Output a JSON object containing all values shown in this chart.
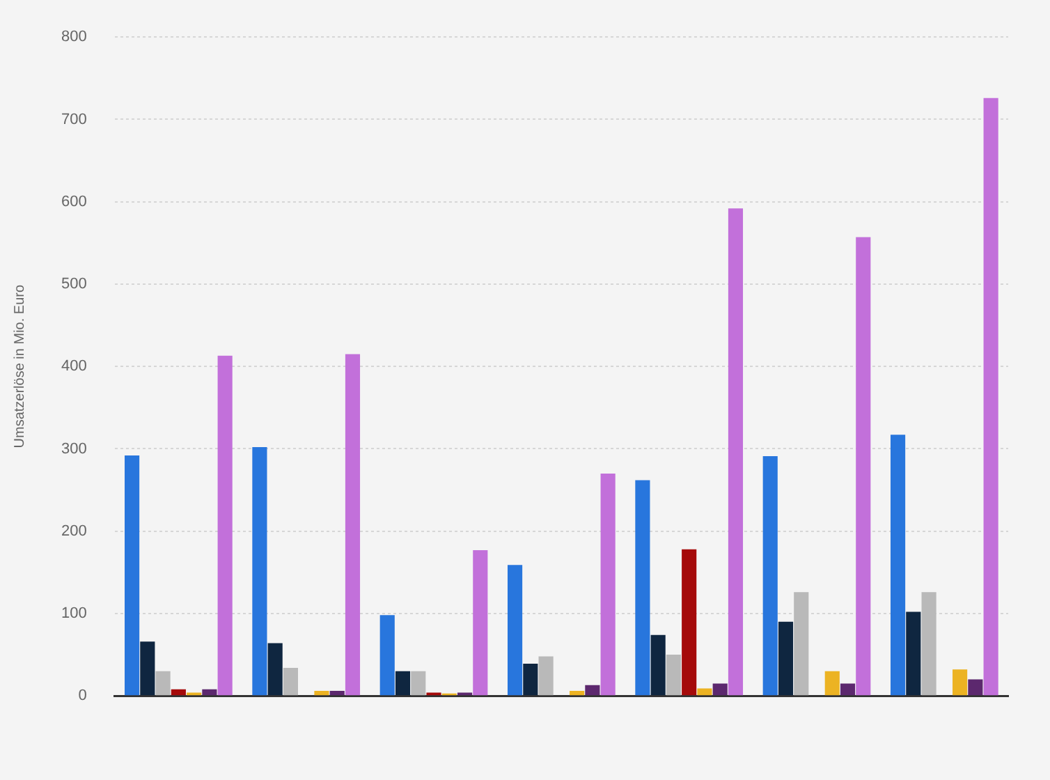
{
  "chart_data": {
    "type": "bar",
    "ylabel": "Umsatzerlöse in Mio. Euro",
    "categories": [
      null,
      null,
      null,
      null,
      null,
      null,
      null
    ],
    "series": [
      {
        "color": "#2876dd",
        "values": [
          292,
          302,
          98,
          159,
          262,
          291,
          317
        ]
      },
      {
        "color": "#0f2640",
        "values": [
          66,
          64,
          30,
          39,
          74,
          90,
          102
        ]
      },
      {
        "color": "#b9b9b9",
        "values": [
          30,
          34,
          30,
          48,
          50,
          126,
          126
        ]
      },
      {
        "color": "#a50a0a",
        "values": [
          8,
          null,
          4,
          null,
          178,
          null,
          null
        ]
      },
      {
        "color": "#ecb323",
        "values": [
          4,
          6,
          3,
          6,
          9,
          30,
          32
        ]
      },
      {
        "color": "#5c286e",
        "values": [
          8,
          6,
          4,
          13,
          15,
          15,
          20
        ]
      },
      {
        "color": "#c270da",
        "values": [
          413,
          415,
          177,
          270,
          592,
          557,
          726
        ]
      }
    ],
    "ylim": [
      0,
      800
    ],
    "yticks": [
      0,
      100,
      200,
      300,
      400,
      500,
      600,
      700,
      800
    ],
    "grid": "y",
    "legend": false
  }
}
